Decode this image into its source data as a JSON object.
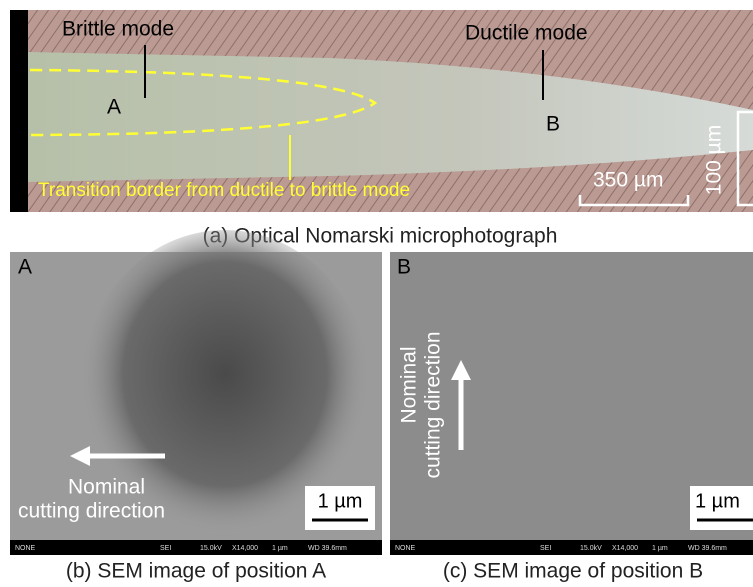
{
  "panel_a": {
    "brittle_label": "Brittle mode",
    "ductile_label": "Ductile mode",
    "point_a": "A",
    "point_b": "B",
    "border_label": "Transition border from ductile to brittle mode",
    "scale_length": "350 µm",
    "scale_width": "100 µm",
    "caption": "(a) Optical Nomarski microphotograph"
  },
  "panel_b": {
    "corner_label": "A",
    "arrow_label": [
      "Nominal",
      "cutting direction"
    ],
    "scale": "1 µm",
    "info_bar": [
      "NONE",
      "SEI",
      "15.0kV",
      "X14,000",
      "1 µm",
      "WD 39.6mm"
    ],
    "caption": "(b) SEM image of position A"
  },
  "panel_c": {
    "corner_label": "B",
    "arrow_label": [
      "Nominal",
      "cutting direction"
    ],
    "scale": "1 µm",
    "info_bar": [
      "NONE",
      "SEI",
      "15.0kV",
      "X14,000",
      "1 µm",
      "WD 39.6mm"
    ],
    "caption": "(c) SEM image of position B"
  }
}
